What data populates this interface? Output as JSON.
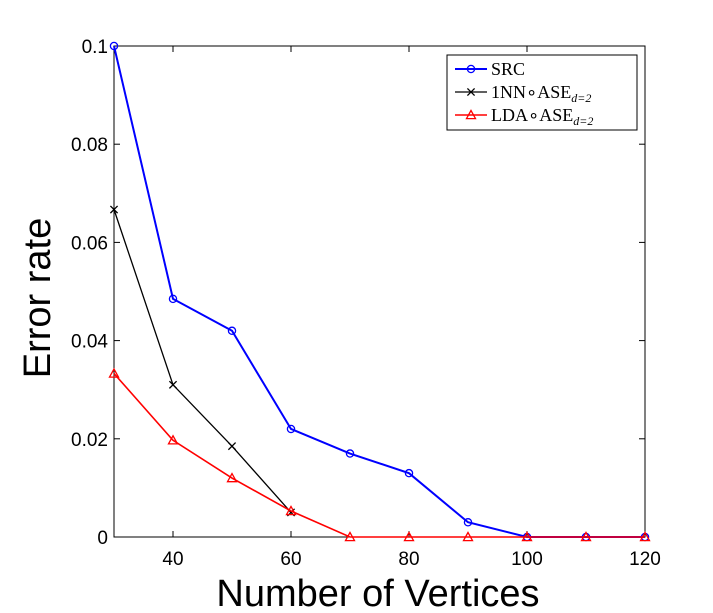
{
  "chart_data": {
    "type": "line",
    "title": "",
    "xlabel": "Number of Vertices",
    "ylabel": "Error rate",
    "xlim": [
      30,
      120
    ],
    "ylim": [
      0,
      0.1
    ],
    "xticks": [
      40,
      60,
      80,
      100,
      120
    ],
    "xtick_labels": [
      "40",
      "60",
      "80",
      "100",
      "120"
    ],
    "yticks": [
      0,
      0.02,
      0.04,
      0.06,
      0.08,
      0.1
    ],
    "ytick_labels": [
      "0",
      "0.02",
      "0.04",
      "0.06",
      "0.08",
      "0.1"
    ],
    "grid": false,
    "legend_position": "top-right",
    "series": [
      {
        "name": "SRC",
        "name_main": "SRC",
        "name_sub": "",
        "color": "#0000ff",
        "marker": "circle",
        "x": [
          30,
          40,
          50,
          60,
          70,
          80,
          90,
          100,
          110,
          120
        ],
        "values": [
          0.1,
          0.0485,
          0.042,
          0.022,
          0.017,
          0.013,
          0.003,
          0.0,
          0.0,
          0.0
        ]
      },
      {
        "name": "1NN∘ASE d=2",
        "name_main": "1NN∘ASE",
        "name_sub": "d=2",
        "color": "#000000",
        "marker": "x",
        "x": [
          30,
          40,
          50,
          60
        ],
        "values": [
          0.0667,
          0.031,
          0.0185,
          0.005
        ]
      },
      {
        "name": "LDA∘ASE d=2",
        "name_main": "LDA∘ASE",
        "name_sub": "d=2",
        "color": "#ff0000",
        "marker": "triangle",
        "x": [
          30,
          40,
          50,
          60,
          70,
          80,
          90,
          100,
          110,
          120
        ],
        "values": [
          0.0333,
          0.0197,
          0.012,
          0.0053,
          0.0,
          0.0,
          0.0,
          0.0,
          0.0,
          0.0
        ]
      }
    ]
  }
}
